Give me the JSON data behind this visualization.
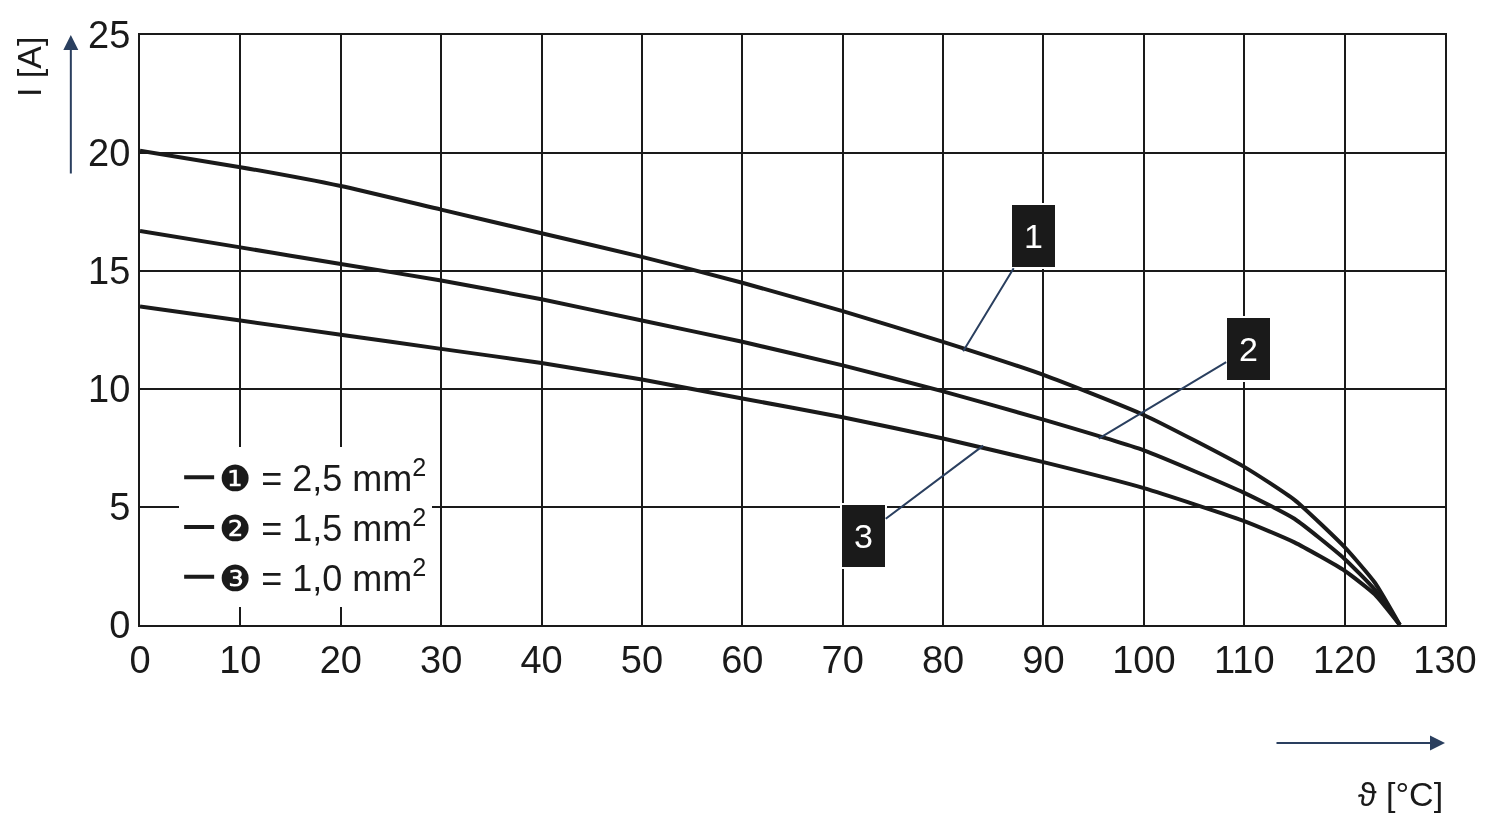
{
  "chart_data": {
    "type": "line",
    "xlabel": "ϑ [°C]",
    "ylabel": "I [A]",
    "x": [
      0,
      10,
      20,
      30,
      40,
      50,
      60,
      70,
      80,
      90,
      100,
      110,
      115,
      120,
      123,
      125.5
    ],
    "series": [
      {
        "name": "❶ = 2,5 mm$^{2}$",
        "color": "#1a1a1a",
        "values": [
          20.1,
          19.4,
          18.6,
          17.6,
          16.6,
          15.6,
          14.5,
          13.3,
          12.0,
          10.6,
          8.9,
          6.7,
          5.3,
          3.3,
          1.8,
          0
        ]
      },
      {
        "name": "❷ = 1,5 mm$^{2}$",
        "color": "#1a1a1a",
        "values": [
          16.7,
          16.0,
          15.3,
          14.6,
          13.8,
          12.9,
          12.0,
          11.0,
          9.9,
          8.7,
          7.4,
          5.6,
          4.5,
          2.8,
          1.5,
          0
        ]
      },
      {
        "name": "❸ = 1,0 mm$^{2}$",
        "color": "#1a1a1a",
        "values": [
          13.5,
          12.9,
          12.3,
          11.7,
          11.1,
          10.4,
          9.6,
          8.8,
          7.9,
          6.9,
          5.8,
          4.4,
          3.5,
          2.3,
          1.3,
          0
        ]
      }
    ],
    "annotations": [
      {
        "text": "1",
        "x": 82,
        "y": 11.6
      },
      {
        "text": "2",
        "x": 95.5,
        "y": 7.9
      },
      {
        "text": "3",
        "x": 84,
        "y": 7.6
      }
    ],
    "xlim": [
      0,
      130
    ],
    "xticks": [
      0,
      10,
      20,
      30,
      40,
      50,
      60,
      70,
      80,
      90,
      100,
      110,
      120,
      130
    ],
    "ylim": [
      0,
      25
    ],
    "yticks": [
      0,
      5,
      10,
      15,
      20,
      25
    ],
    "grid": true,
    "legend": "bottom left",
    "marker": "none",
    "line_style": "solid"
  }
}
